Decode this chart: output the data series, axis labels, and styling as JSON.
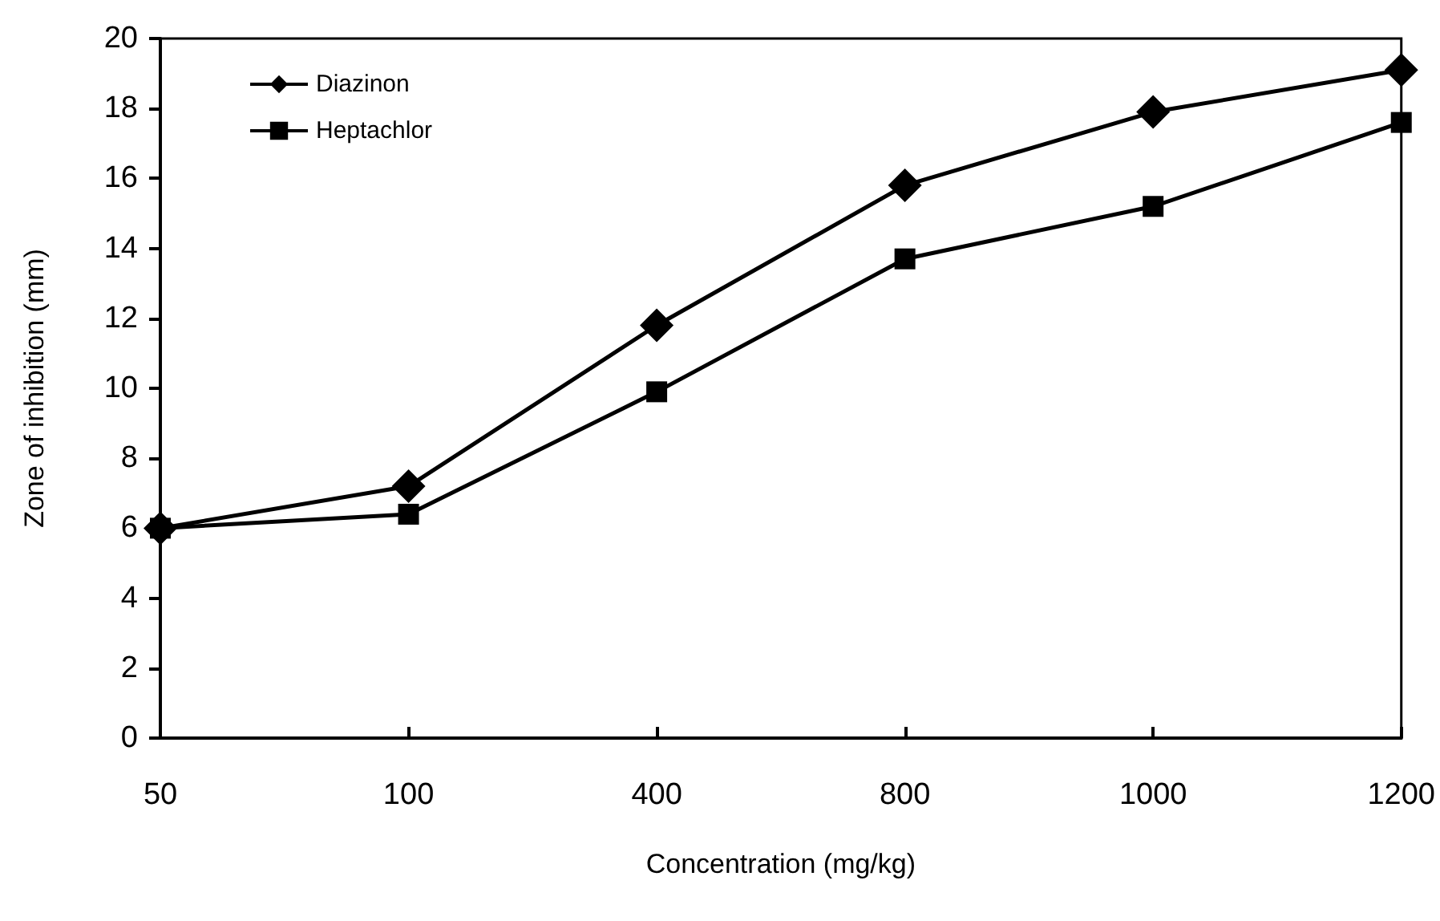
{
  "chart_data": {
    "type": "line",
    "xlabel": "Concentration (mg/kg)",
    "ylabel": "Zone of inhibition (mm)",
    "categories": [
      "50",
      "100",
      "400",
      "800",
      "1000",
      "1200"
    ],
    "series": [
      {
        "name": "Diazinon",
        "color": "#000000",
        "marker": "diamond",
        "values": [
          6,
          7.2,
          11.8,
          15.8,
          17.9,
          19.1
        ]
      },
      {
        "name": "Heptachlor",
        "color": "#000000",
        "marker": "square",
        "values": [
          6,
          6.4,
          9.9,
          13.7,
          15.2,
          17.6
        ]
      }
    ],
    "ylim": [
      0,
      20
    ],
    "yticks": [
      0,
      2,
      4,
      6,
      8,
      10,
      12,
      14,
      16,
      18,
      20
    ],
    "grid": false,
    "legend": "top left",
    "line_style": "solid"
  }
}
